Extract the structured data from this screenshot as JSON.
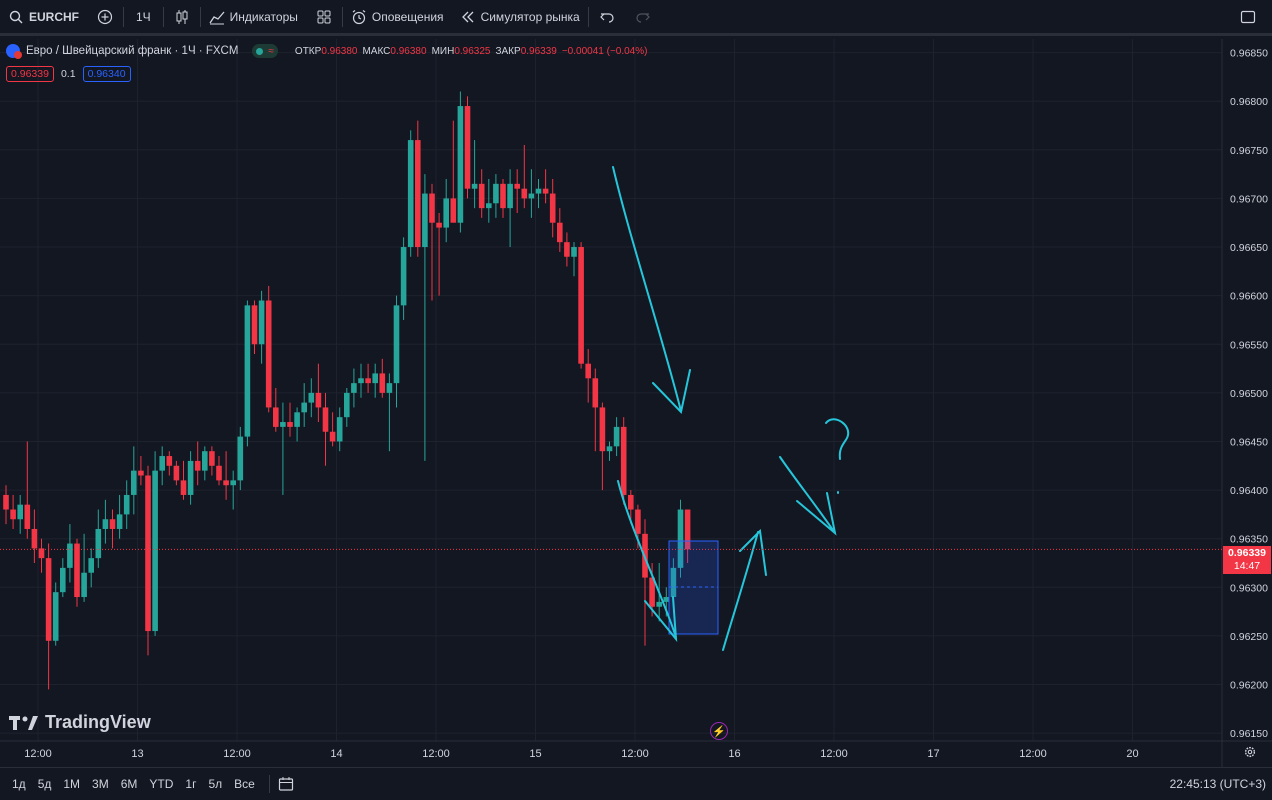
{
  "toolbar": {
    "symbol": "EURCHF",
    "interval": "1Ч",
    "indicators": "Индикаторы",
    "alerts": "Оповещения",
    "replay": "Симулятор рынка"
  },
  "legend": {
    "title": "Евро / Швейцарский франк · 1Ч · FXCM",
    "open_k": "ОТКР",
    "open_v": "0.96380",
    "high_k": "МАКС",
    "high_v": "0.96380",
    "low_k": "МИН",
    "low_v": "0.96325",
    "close_k": "ЗАКР",
    "close_v": "0.96339",
    "change": "−0.00041 (−0.04%)"
  },
  "pricebox": {
    "bid": "0.96339",
    "spread": "0.1",
    "ask": "0.96340"
  },
  "last_price": {
    "price": "0.96339",
    "countdown": "14:47"
  },
  "watermark": "TradingView",
  "bottombar": {
    "ranges": [
      "1д",
      "5д",
      "1М",
      "3М",
      "6М",
      "YTD",
      "1г",
      "5л",
      "Все"
    ],
    "clock": "22:45:13 (UTC+3)"
  },
  "colors": {
    "bg": "#131722",
    "up": "#26a69a",
    "down": "#f23645",
    "grid": "#1e222d",
    "drawing": "#26c6da"
  },
  "chart_data": {
    "type": "candlestick",
    "ylim": [
      0.96145,
      0.96865
    ],
    "y_ticks": [
      "0.96850",
      "0.96800",
      "0.96750",
      "0.96700",
      "0.96650",
      "0.96600",
      "0.96550",
      "0.96500",
      "0.96450",
      "0.96400",
      "0.96350",
      "0.96300",
      "0.96250",
      "0.96200",
      "0.96150"
    ],
    "x_tick_labels": [
      "12:00",
      "13",
      "12:00",
      "14",
      "12:00",
      "15",
      "12:00",
      "16",
      "12:00",
      "17",
      "12:00",
      "20"
    ],
    "candles": [
      {
        "o": 0.96395,
        "h": 0.96405,
        "l": 0.96365,
        "c": 0.9638
      },
      {
        "o": 0.9638,
        "h": 0.96395,
        "l": 0.9636,
        "c": 0.9637
      },
      {
        "o": 0.9637,
        "h": 0.96395,
        "l": 0.96355,
        "c": 0.96385
      },
      {
        "o": 0.96385,
        "h": 0.9645,
        "l": 0.9635,
        "c": 0.9636
      },
      {
        "o": 0.9636,
        "h": 0.9638,
        "l": 0.96325,
        "c": 0.9634
      },
      {
        "o": 0.9634,
        "h": 0.9635,
        "l": 0.96315,
        "c": 0.9633
      },
      {
        "o": 0.9633,
        "h": 0.96345,
        "l": 0.96195,
        "c": 0.96245
      },
      {
        "o": 0.96245,
        "h": 0.96305,
        "l": 0.9624,
        "c": 0.96295
      },
      {
        "o": 0.96295,
        "h": 0.9633,
        "l": 0.9629,
        "c": 0.9632
      },
      {
        "o": 0.9632,
        "h": 0.96365,
        "l": 0.96305,
        "c": 0.96345
      },
      {
        "o": 0.96345,
        "h": 0.9635,
        "l": 0.9628,
        "c": 0.9629
      },
      {
        "o": 0.9629,
        "h": 0.96355,
        "l": 0.96285,
        "c": 0.96315
      },
      {
        "o": 0.96315,
        "h": 0.9634,
        "l": 0.963,
        "c": 0.9633
      },
      {
        "o": 0.9633,
        "h": 0.9638,
        "l": 0.9632,
        "c": 0.9636
      },
      {
        "o": 0.9636,
        "h": 0.9639,
        "l": 0.96345,
        "c": 0.9637
      },
      {
        "o": 0.9637,
        "h": 0.9638,
        "l": 0.9634,
        "c": 0.9636
      },
      {
        "o": 0.9636,
        "h": 0.96395,
        "l": 0.9635,
        "c": 0.96375
      },
      {
        "o": 0.96375,
        "h": 0.9641,
        "l": 0.9636,
        "c": 0.96395
      },
      {
        "o": 0.96395,
        "h": 0.96445,
        "l": 0.96375,
        "c": 0.9642
      },
      {
        "o": 0.9642,
        "h": 0.96435,
        "l": 0.96405,
        "c": 0.96415
      },
      {
        "o": 0.96415,
        "h": 0.96425,
        "l": 0.9623,
        "c": 0.96255
      },
      {
        "o": 0.96255,
        "h": 0.9644,
        "l": 0.9625,
        "c": 0.9642
      },
      {
        "o": 0.9642,
        "h": 0.96445,
        "l": 0.96405,
        "c": 0.96435
      },
      {
        "o": 0.96435,
        "h": 0.9644,
        "l": 0.96415,
        "c": 0.96425
      },
      {
        "o": 0.96425,
        "h": 0.9643,
        "l": 0.96405,
        "c": 0.9641
      },
      {
        "o": 0.9641,
        "h": 0.9643,
        "l": 0.9639,
        "c": 0.96395
      },
      {
        "o": 0.96395,
        "h": 0.9644,
        "l": 0.96385,
        "c": 0.9643
      },
      {
        "o": 0.9643,
        "h": 0.9645,
        "l": 0.96405,
        "c": 0.9642
      },
      {
        "o": 0.9642,
        "h": 0.96445,
        "l": 0.9641,
        "c": 0.9644
      },
      {
        "o": 0.9644,
        "h": 0.96445,
        "l": 0.96415,
        "c": 0.96425
      },
      {
        "o": 0.96425,
        "h": 0.96435,
        "l": 0.96405,
        "c": 0.9641
      },
      {
        "o": 0.9641,
        "h": 0.9644,
        "l": 0.9639,
        "c": 0.96405
      },
      {
        "o": 0.96405,
        "h": 0.9642,
        "l": 0.9638,
        "c": 0.9641
      },
      {
        "o": 0.9641,
        "h": 0.96465,
        "l": 0.964,
        "c": 0.96455
      },
      {
        "o": 0.96455,
        "h": 0.96595,
        "l": 0.96445,
        "c": 0.9659
      },
      {
        "o": 0.9659,
        "h": 0.96595,
        "l": 0.9654,
        "c": 0.9655
      },
      {
        "o": 0.9655,
        "h": 0.96605,
        "l": 0.9653,
        "c": 0.96595
      },
      {
        "o": 0.96595,
        "h": 0.9661,
        "l": 0.9648,
        "c": 0.96485
      },
      {
        "o": 0.96485,
        "h": 0.96505,
        "l": 0.9646,
        "c": 0.96465
      },
      {
        "o": 0.96465,
        "h": 0.9649,
        "l": 0.96395,
        "c": 0.9647
      },
      {
        "o": 0.9647,
        "h": 0.9649,
        "l": 0.96455,
        "c": 0.96465
      },
      {
        "o": 0.96465,
        "h": 0.96485,
        "l": 0.9645,
        "c": 0.9648
      },
      {
        "o": 0.9648,
        "h": 0.9651,
        "l": 0.96465,
        "c": 0.9649
      },
      {
        "o": 0.9649,
        "h": 0.96515,
        "l": 0.96475,
        "c": 0.965
      },
      {
        "o": 0.965,
        "h": 0.9653,
        "l": 0.9647,
        "c": 0.96485
      },
      {
        "o": 0.96485,
        "h": 0.965,
        "l": 0.96425,
        "c": 0.9646
      },
      {
        "o": 0.9646,
        "h": 0.9648,
        "l": 0.96445,
        "c": 0.9645
      },
      {
        "o": 0.9645,
        "h": 0.96485,
        "l": 0.9644,
        "c": 0.96475
      },
      {
        "o": 0.96475,
        "h": 0.96505,
        "l": 0.96465,
        "c": 0.965
      },
      {
        "o": 0.965,
        "h": 0.96525,
        "l": 0.96485,
        "c": 0.9651
      },
      {
        "o": 0.9651,
        "h": 0.9653,
        "l": 0.96495,
        "c": 0.96515
      },
      {
        "o": 0.96515,
        "h": 0.9653,
        "l": 0.965,
        "c": 0.9651
      },
      {
        "o": 0.9651,
        "h": 0.9653,
        "l": 0.96495,
        "c": 0.9652
      },
      {
        "o": 0.9652,
        "h": 0.96535,
        "l": 0.96495,
        "c": 0.965
      },
      {
        "o": 0.965,
        "h": 0.9652,
        "l": 0.9644,
        "c": 0.9651
      },
      {
        "o": 0.9651,
        "h": 0.966,
        "l": 0.96485,
        "c": 0.9659
      },
      {
        "o": 0.9659,
        "h": 0.9666,
        "l": 0.96575,
        "c": 0.9665
      },
      {
        "o": 0.9665,
        "h": 0.9677,
        "l": 0.9664,
        "c": 0.9676
      },
      {
        "o": 0.9676,
        "h": 0.9678,
        "l": 0.9664,
        "c": 0.9665
      },
      {
        "o": 0.9665,
        "h": 0.96725,
        "l": 0.9643,
        "c": 0.96705
      },
      {
        "o": 0.96705,
        "h": 0.96715,
        "l": 0.96595,
        "c": 0.96675
      },
      {
        "o": 0.96675,
        "h": 0.96685,
        "l": 0.966,
        "c": 0.9667
      },
      {
        "o": 0.9667,
        "h": 0.9672,
        "l": 0.96655,
        "c": 0.967
      },
      {
        "o": 0.967,
        "h": 0.9678,
        "l": 0.9668,
        "c": 0.96675
      },
      {
        "o": 0.96675,
        "h": 0.9681,
        "l": 0.96665,
        "c": 0.96795
      },
      {
        "o": 0.96795,
        "h": 0.96805,
        "l": 0.967,
        "c": 0.9671
      },
      {
        "o": 0.9671,
        "h": 0.9676,
        "l": 0.9669,
        "c": 0.96715
      },
      {
        "o": 0.96715,
        "h": 0.9673,
        "l": 0.9668,
        "c": 0.9669
      },
      {
        "o": 0.9669,
        "h": 0.9672,
        "l": 0.96675,
        "c": 0.96695
      },
      {
        "o": 0.96695,
        "h": 0.96725,
        "l": 0.9668,
        "c": 0.96715
      },
      {
        "o": 0.96715,
        "h": 0.9672,
        "l": 0.9668,
        "c": 0.9669
      },
      {
        "o": 0.9669,
        "h": 0.9673,
        "l": 0.9665,
        "c": 0.96715
      },
      {
        "o": 0.96715,
        "h": 0.9673,
        "l": 0.96685,
        "c": 0.9671
      },
      {
        "o": 0.9671,
        "h": 0.96755,
        "l": 0.9669,
        "c": 0.967
      },
      {
        "o": 0.967,
        "h": 0.9673,
        "l": 0.9668,
        "c": 0.96705
      },
      {
        "o": 0.96705,
        "h": 0.9672,
        "l": 0.9669,
        "c": 0.9671
      },
      {
        "o": 0.9671,
        "h": 0.9673,
        "l": 0.96695,
        "c": 0.96705
      },
      {
        "o": 0.96705,
        "h": 0.9672,
        "l": 0.9666,
        "c": 0.96675
      },
      {
        "o": 0.96675,
        "h": 0.9669,
        "l": 0.96645,
        "c": 0.96655
      },
      {
        "o": 0.96655,
        "h": 0.96665,
        "l": 0.9663,
        "c": 0.9664
      },
      {
        "o": 0.9664,
        "h": 0.96655,
        "l": 0.9662,
        "c": 0.9665
      },
      {
        "o": 0.9665,
        "h": 0.96655,
        "l": 0.96525,
        "c": 0.9653
      },
      {
        "o": 0.9653,
        "h": 0.96545,
        "l": 0.9649,
        "c": 0.96515
      },
      {
        "o": 0.96515,
        "h": 0.96525,
        "l": 0.9644,
        "c": 0.96485
      },
      {
        "o": 0.96485,
        "h": 0.9649,
        "l": 0.964,
        "c": 0.9644
      },
      {
        "o": 0.9644,
        "h": 0.9645,
        "l": 0.9643,
        "c": 0.96445
      },
      {
        "o": 0.96445,
        "h": 0.96475,
        "l": 0.96435,
        "c": 0.96465
      },
      {
        "o": 0.96465,
        "h": 0.96475,
        "l": 0.96385,
        "c": 0.96395
      },
      {
        "o": 0.96395,
        "h": 0.964,
        "l": 0.96365,
        "c": 0.9638
      },
      {
        "o": 0.9638,
        "h": 0.96385,
        "l": 0.9634,
        "c": 0.96355
      },
      {
        "o": 0.96355,
        "h": 0.9637,
        "l": 0.9624,
        "c": 0.9631
      },
      {
        "o": 0.9631,
        "h": 0.96325,
        "l": 0.9627,
        "c": 0.9628
      },
      {
        "o": 0.9628,
        "h": 0.96325,
        "l": 0.96265,
        "c": 0.96285
      },
      {
        "o": 0.96285,
        "h": 0.963,
        "l": 0.9627,
        "c": 0.9629
      },
      {
        "o": 0.9629,
        "h": 0.9633,
        "l": 0.9628,
        "c": 0.9632
      },
      {
        "o": 0.9632,
        "h": 0.9639,
        "l": 0.9631,
        "c": 0.9638
      },
      {
        "o": 0.9638,
        "h": 0.9638,
        "l": 0.96325,
        "c": 0.96339
      }
    ],
    "current_price": 0.96339,
    "drawn_box": {
      "y_top": 0.96349,
      "y_bottom": 0.96256
    },
    "annotations": [
      "?"
    ]
  }
}
